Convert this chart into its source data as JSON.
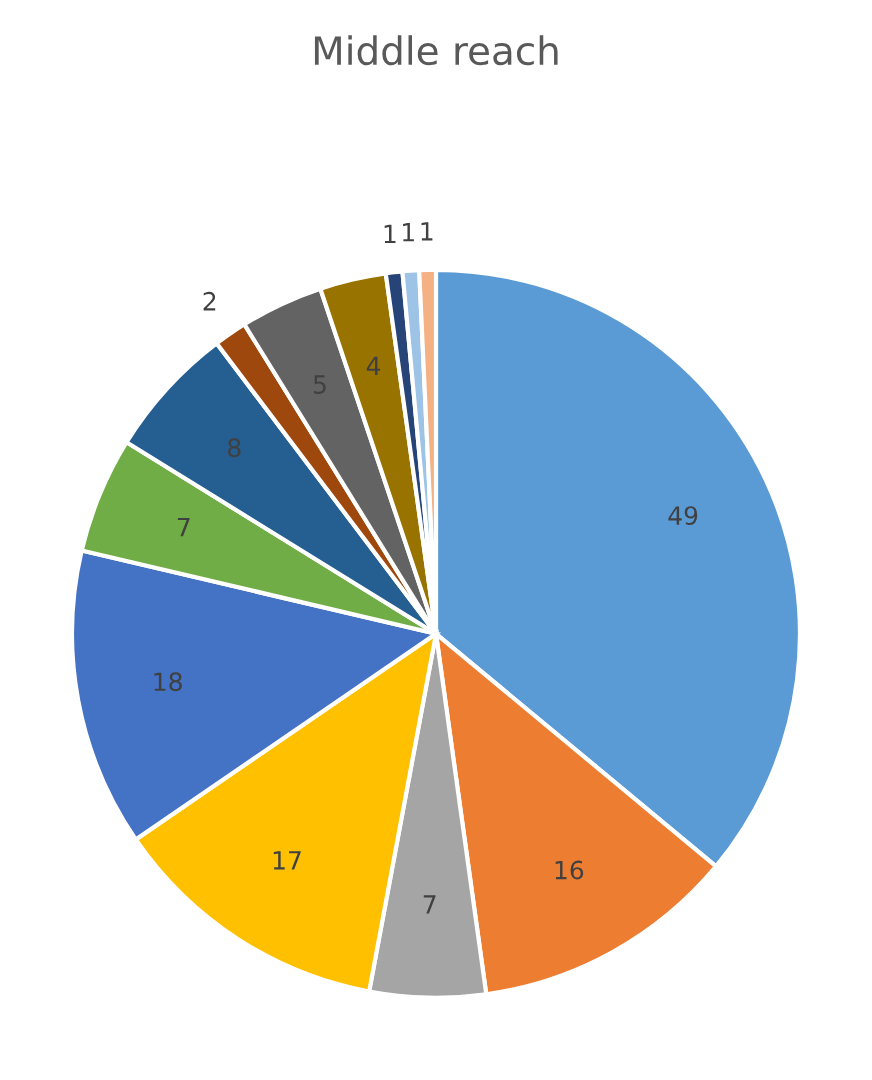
{
  "chart_data": {
    "type": "pie",
    "title": "Middle reach",
    "categories": [
      null,
      null,
      null,
      null,
      null,
      null,
      null,
      null,
      null,
      null,
      null,
      null,
      null
    ],
    "values": [
      49,
      16,
      7,
      17,
      18,
      7,
      8,
      2,
      5,
      4,
      1,
      1,
      1
    ],
    "colors": [
      "#5b9bd5",
      "#ed7d31",
      "#a5a5a5",
      "#ffc000",
      "#4472c4",
      "#70ad47",
      "#255e91",
      "#9e480e",
      "#636363",
      "#997300",
      "#264478",
      "#9dc3e6",
      "#f4b183"
    ],
    "data_labels": true
  }
}
